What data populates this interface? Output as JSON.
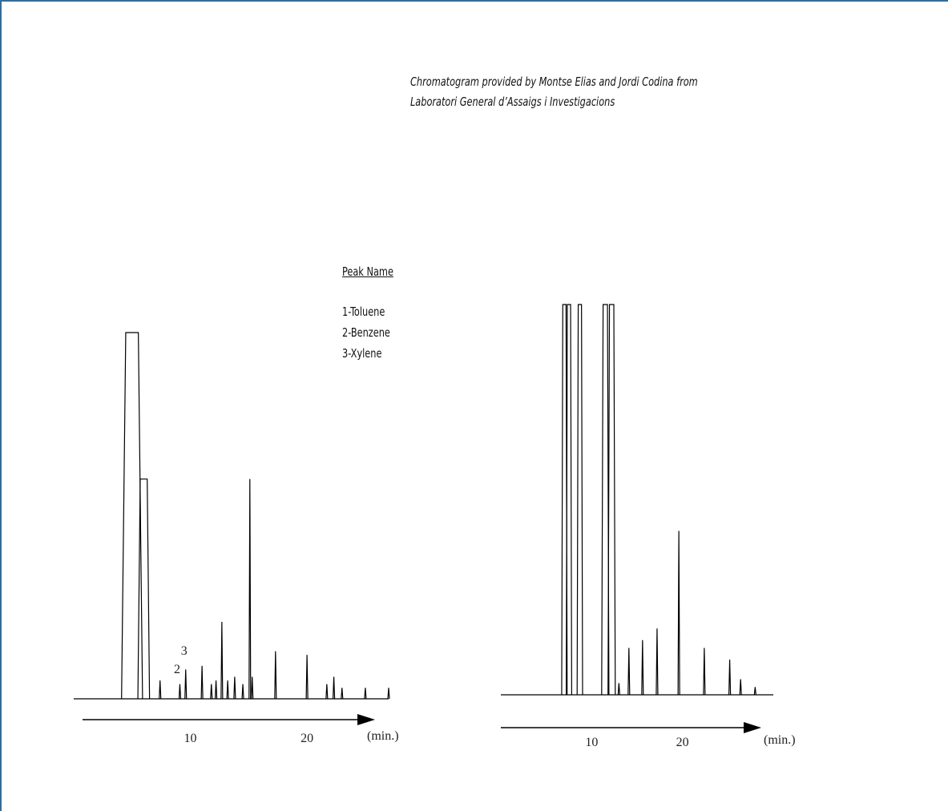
{
  "credit": {
    "line1": "Chromatogram provided by Montse Elias and Jordi Codina from",
    "line2": "Laboratori General d’Assaigs i Investigacions"
  },
  "legend": {
    "title": "Peak Name",
    "items": [
      "1-Toluene",
      "2-Benzene",
      "3-Xylene"
    ]
  },
  "colors": {
    "frame": "#2a6fa6",
    "trace": "#000000"
  },
  "chart_data": [
    {
      "type": "line",
      "title": "",
      "xlabel": "(min.)",
      "ylabel": "",
      "xlim": [
        0,
        27
      ],
      "ylim": [
        0,
        100
      ],
      "x_ticks": [
        10,
        20
      ],
      "grid": false,
      "peak_labels": [
        {
          "x": 9.0,
          "y": 7,
          "text": "2"
        },
        {
          "x": 9.6,
          "y": 12,
          "text": "3"
        }
      ],
      "series": [
        {
          "peaks": [
            {
              "x": 5.0,
              "y": 100,
              "w": 0.9
            },
            {
              "x": 6.0,
              "y": 60,
              "w": 0.5
            },
            {
              "x": 7.4,
              "y": 5,
              "w": 0.1
            },
            {
              "x": 9.1,
              "y": 4,
              "w": 0.08
            },
            {
              "x": 9.6,
              "y": 8,
              "w": 0.08
            },
            {
              "x": 11.0,
              "y": 9,
              "w": 0.08
            },
            {
              "x": 11.8,
              "y": 4,
              "w": 0.08
            },
            {
              "x": 12.2,
              "y": 5,
              "w": 0.08
            },
            {
              "x": 12.7,
              "y": 21,
              "w": 0.1
            },
            {
              "x": 13.2,
              "y": 5,
              "w": 0.08
            },
            {
              "x": 13.8,
              "y": 6,
              "w": 0.08
            },
            {
              "x": 14.5,
              "y": 4,
              "w": 0.08
            },
            {
              "x": 15.1,
              "y": 60,
              "w": 0.08
            },
            {
              "x": 15.3,
              "y": 6,
              "w": 0.08
            },
            {
              "x": 17.3,
              "y": 13,
              "w": 0.08
            },
            {
              "x": 20.0,
              "y": 12,
              "w": 0.1
            },
            {
              "x": 21.7,
              "y": 4,
              "w": 0.08
            },
            {
              "x": 22.3,
              "y": 6,
              "w": 0.08
            },
            {
              "x": 23.0,
              "y": 3,
              "w": 0.08
            },
            {
              "x": 25.0,
              "y": 3,
              "w": 0.1
            },
            {
              "x": 27.0,
              "y": 3,
              "w": 0.1
            }
          ]
        }
      ]
    },
    {
      "type": "line",
      "title": "",
      "xlabel": "(min.)",
      "ylabel": "",
      "xlim": [
        0,
        30
      ],
      "ylim": [
        0,
        100
      ],
      "x_ticks": [
        10,
        20
      ],
      "x_tick_labels": [
        "10",
        "20"
      ],
      "grid": false,
      "peak_labels": [],
      "series": [
        {
          "peaks": [
            {
              "x": 7.0,
              "y": 100,
              "w": 0.3
            },
            {
              "x": 7.5,
              "y": 100,
              "w": 0.3
            },
            {
              "x": 8.7,
              "y": 100,
              "w": 0.3
            },
            {
              "x": 11.5,
              "y": 100,
              "w": 0.4
            },
            {
              "x": 12.2,
              "y": 100,
              "w": 0.4
            },
            {
              "x": 13.0,
              "y": 3,
              "w": 0.08
            },
            {
              "x": 14.1,
              "y": 12,
              "w": 0.08
            },
            {
              "x": 15.6,
              "y": 14,
              "w": 0.08
            },
            {
              "x": 17.2,
              "y": 17,
              "w": 0.08
            },
            {
              "x": 19.6,
              "y": 42,
              "w": 0.08
            },
            {
              "x": 22.4,
              "y": 12,
              "w": 0.08
            },
            {
              "x": 25.2,
              "y": 9,
              "w": 0.08
            },
            {
              "x": 26.4,
              "y": 4,
              "w": 0.08
            },
            {
              "x": 28.0,
              "y": 2,
              "w": 0.08
            }
          ]
        }
      ]
    }
  ]
}
